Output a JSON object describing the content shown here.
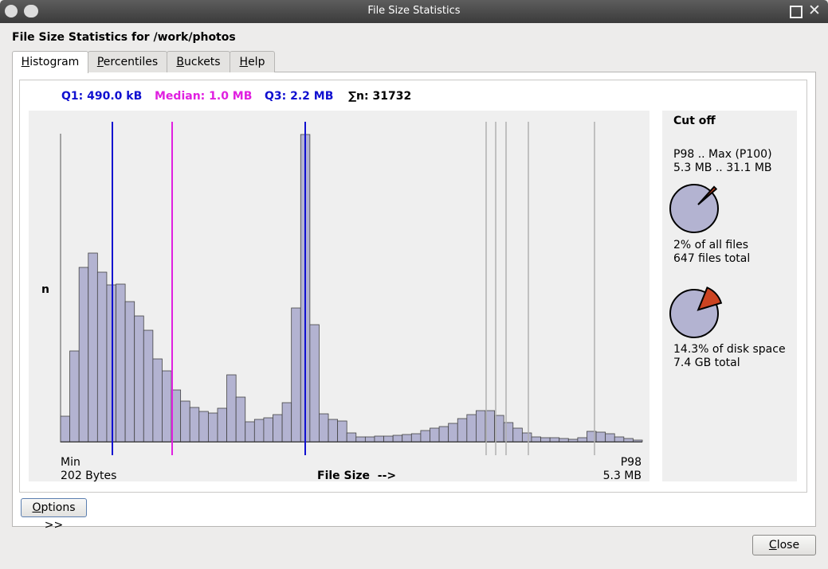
{
  "window": {
    "title": "File Size Statistics"
  },
  "heading": "File Size Statistics for /work/photos",
  "tabs": [
    "Histogram",
    "Percentiles",
    "Buckets",
    "Help"
  ],
  "stats": {
    "q1": "Q1: 490.0 kB",
    "median": "Median: 1.0 MB",
    "q3": "Q3: 2.2 MB",
    "n": "∑n: 31732"
  },
  "histogram": {
    "y_label": "n",
    "x_label": "File Size  -->",
    "min_label": "Min",
    "min_value": "202 Bytes",
    "max_label": "P98",
    "max_value": "5.3 MB",
    "color": "#b3b3d1",
    "values": [
      32,
      114,
      219,
      237,
      213,
      197,
      198,
      176,
      158,
      140,
      104,
      89,
      65,
      51,
      43,
      38,
      36,
      42,
      84,
      56,
      25,
      28,
      30,
      34,
      49,
      168,
      386,
      147,
      35,
      28,
      26,
      11,
      6,
      6,
      7,
      7,
      8,
      9,
      10,
      14,
      17,
      19,
      23,
      29,
      34,
      39,
      39,
      33,
      24,
      17,
      11,
      6,
      5,
      5,
      4,
      3,
      5,
      13,
      12,
      10,
      6,
      4,
      2
    ]
  },
  "cutoff": {
    "title": "Cut off",
    "range_label": "P98 .. Max (P100)",
    "range_value": "5.3 MB .. 31.1 MB",
    "files_pie": {
      "value": 2,
      "label": "2% of all files"
    },
    "files_total": "647 files total",
    "space_pie": {
      "value": 14.3,
      "label": "14.3% of disk space"
    },
    "space_total": "7.4 GB total"
  },
  "buttons": {
    "options": "Options >>",
    "close": "Close"
  }
}
